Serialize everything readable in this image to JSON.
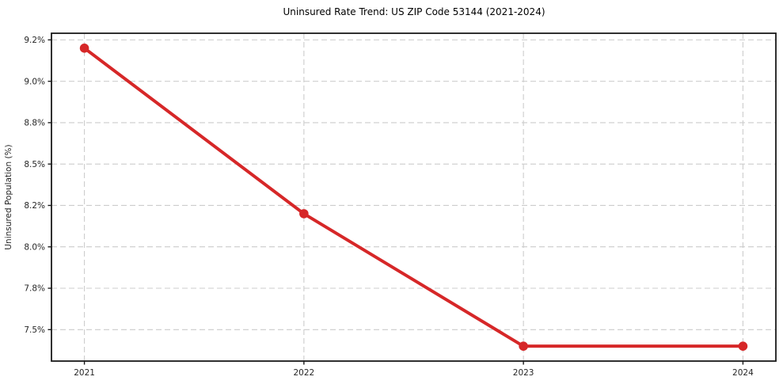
{
  "chart_data": {
    "type": "line",
    "title": "Uninsured Rate Trend: US ZIP Code 53144 (2021-2024)",
    "xlabel": "",
    "ylabel": "Uninsured Population (%)",
    "x": [
      2021,
      2022,
      2023,
      2024
    ],
    "series": [
      {
        "name": "Uninsured rate",
        "values": [
          9.2,
          8.2,
          7.4,
          7.4
        ],
        "color": "#d62728",
        "marker": "circle"
      }
    ],
    "x_tick_labels": [
      "2021",
      "2022",
      "2023",
      "2024"
    ],
    "y_ticks": [
      {
        "value": 9.25,
        "label": "9.2%"
      },
      {
        "value": 9.0,
        "label": "9.0%"
      },
      {
        "value": 8.75,
        "label": "8.8%"
      },
      {
        "value": 8.5,
        "label": "8.5%"
      },
      {
        "value": 8.25,
        "label": "8.2%"
      },
      {
        "value": 8.0,
        "label": "8.0%"
      },
      {
        "value": 7.75,
        "label": "7.8%"
      },
      {
        "value": 7.5,
        "label": "7.5%"
      }
    ],
    "xlim": [
      2020.85,
      2024.15
    ],
    "ylim": [
      7.31,
      9.29
    ],
    "grid": true,
    "grid_style": "dashed",
    "legend": "none",
    "colors": {
      "line": "#d62728",
      "grid": "#cccccc",
      "axis": "#1a1a1a",
      "text": "#262626",
      "title": "#000000",
      "background": "#ffffff"
    }
  }
}
